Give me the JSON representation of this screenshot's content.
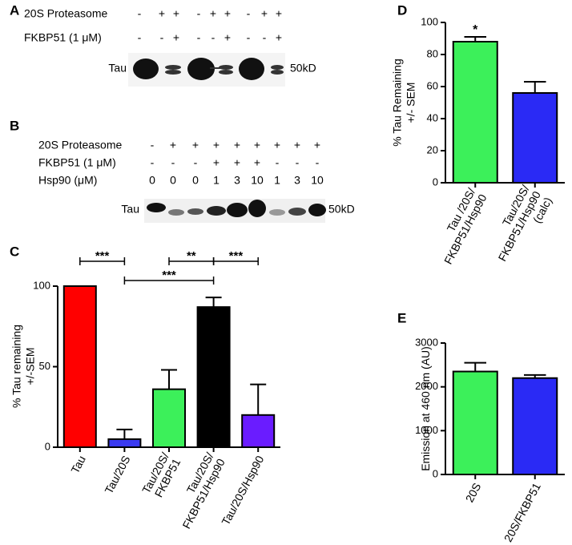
{
  "blots": [
    {
      "label": "A",
      "rows": [
        {
          "name": "20S Proteasome",
          "cells": [
            "-",
            "+",
            "+",
            "-",
            "+",
            "+",
            "-",
            "+",
            "+"
          ]
        },
        {
          "name": "FKBP51 (1 μM)",
          "cells": [
            "-",
            "-",
            "+",
            "-",
            "-",
            "+",
            "-",
            "-",
            "+"
          ]
        }
      ],
      "band_label": "Tau",
      "size": "50kD"
    },
    {
      "label": "B",
      "rows": [
        {
          "name": "20S Proteasome",
          "cells": [
            "-",
            "+",
            "+",
            "+",
            "+",
            "+",
            "+",
            "+",
            "+"
          ]
        },
        {
          "name": "FKBP51 (1 μM)",
          "cells": [
            "-",
            "-",
            "-",
            "+",
            "+",
            "+",
            "-",
            "-",
            "-"
          ]
        },
        {
          "name": "Hsp90 (μM)",
          "cells": [
            "0",
            "0",
            "0",
            "1",
            "3",
            "10",
            "1",
            "3",
            "10"
          ]
        }
      ],
      "band_label": "Tau",
      "size": "50kD"
    }
  ],
  "chart_data": [
    {
      "type": "bar",
      "panel": "C",
      "y_label": [
        "% Tau remaining",
        "+/-SEM"
      ],
      "categories": [
        [
          "Tau"
        ],
        [
          "Tau/20S"
        ],
        [
          "Tau/20S/",
          "FKBP51"
        ],
        [
          "Tau/20S/",
          "FKBP51/Hsp90"
        ],
        [
          "Tau/20S/Hsp90"
        ]
      ],
      "values": [
        100,
        5,
        36,
        87,
        20
      ],
      "errors": [
        null,
        6,
        12,
        6,
        19
      ],
      "colors": [
        "#ff0000",
        "#3a3af0",
        "#3cf05a",
        "#000000",
        "#6a1cff"
      ],
      "ylim": [
        0,
        100
      ],
      "yticks": [
        0,
        50,
        100
      ],
      "annotations": [
        {
          "text": "***",
          "from": 0,
          "to": 1
        },
        {
          "text": "**",
          "from": 2,
          "to": 3
        },
        {
          "text": "***",
          "from": 3,
          "to": 4
        },
        {
          "text": "***",
          "from": 1,
          "to": 3
        }
      ]
    },
    {
      "type": "bar",
      "panel": "D",
      "y_label": [
        "% Tau Remaining",
        "+/- SEM"
      ],
      "categories": [
        [
          "Tau /20S/",
          "FKBP51/Hsp90"
        ],
        [
          "Tau/20S/",
          "FKBP51/Hsp90",
          "(calc)"
        ]
      ],
      "values": [
        88,
        56
      ],
      "errors": [
        3,
        7
      ],
      "colors": [
        "#3cf05a",
        "#2a2af5"
      ],
      "ylim": [
        0,
        100
      ],
      "yticks": [
        0,
        20,
        40,
        60,
        80,
        100
      ],
      "annotations": [
        {
          "text": "*",
          "from": 0,
          "to": 0
        }
      ]
    },
    {
      "type": "bar",
      "panel": "E",
      "y_label": [
        "Emission at 460 nm (AU)"
      ],
      "categories": [
        [
          "20S"
        ],
        [
          "20S/FKBP51"
        ]
      ],
      "values": [
        2350,
        2200
      ],
      "errors": [
        200,
        70
      ],
      "colors": [
        "#3cf05a",
        "#2a2af5"
      ],
      "ylim": [
        0,
        3000
      ],
      "yticks": [
        0,
        1000,
        2000,
        3000
      ]
    }
  ]
}
